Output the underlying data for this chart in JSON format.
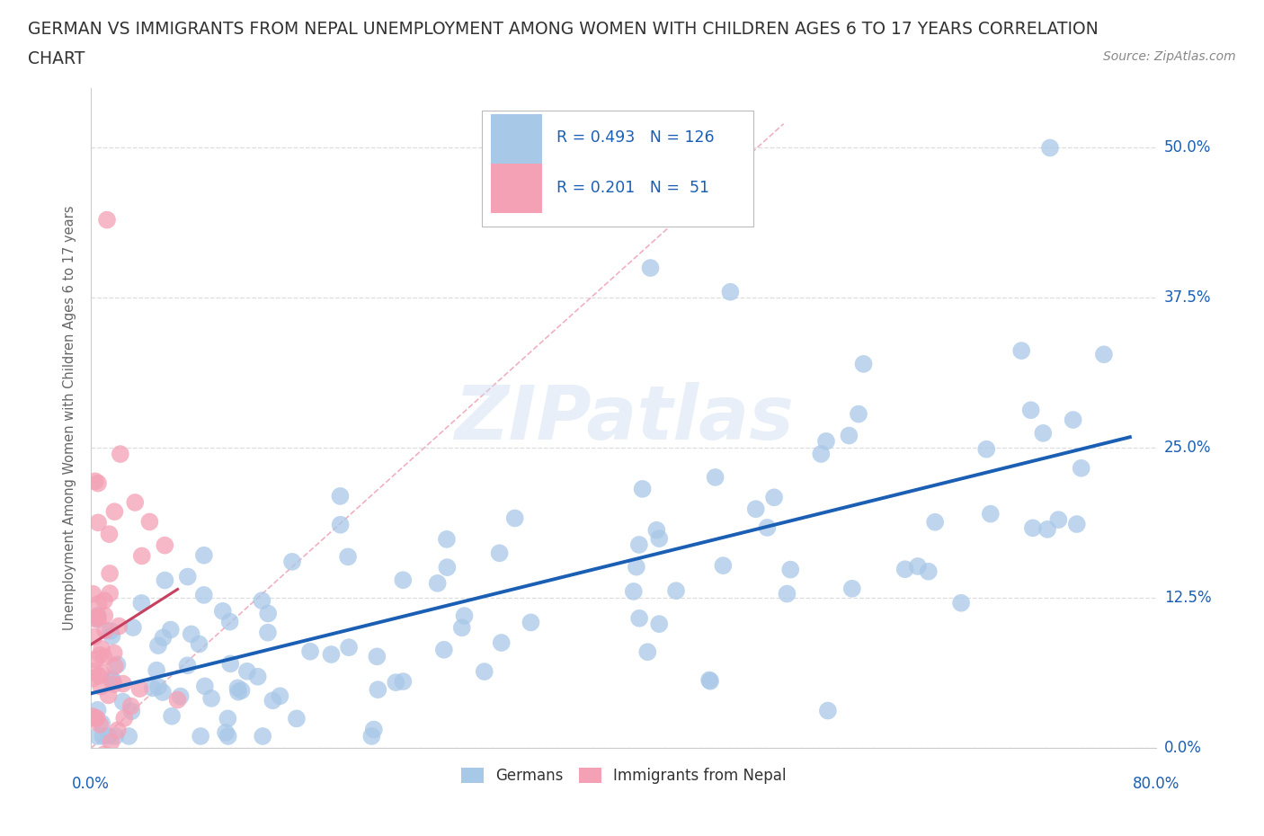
{
  "title_line1": "GERMAN VS IMMIGRANTS FROM NEPAL UNEMPLOYMENT AMONG WOMEN WITH CHILDREN AGES 6 TO 17 YEARS CORRELATION",
  "title_line2": "CHART",
  "source_text": "Source: ZipAtlas.com",
  "ylabel": "Unemployment Among Women with Children Ages 6 to 17 years",
  "xlim": [
    0.0,
    0.8
  ],
  "ylim": [
    0.0,
    0.55
  ],
  "ytick_vals": [
    0.0,
    0.125,
    0.25,
    0.375,
    0.5
  ],
  "ytick_labels": [
    "0.0%",
    "12.5%",
    "25.0%",
    "37.5%",
    "50.0%"
  ],
  "german_R": 0.493,
  "german_N": 126,
  "nepal_R": 0.201,
  "nepal_N": 51,
  "german_color": "#a8c8e8",
  "nepal_color": "#f4a0b5",
  "regression_german_color": "#1a5fb4",
  "regression_nepal_color": "#c84060",
  "diagonal_color": "#e0a0b0",
  "background_color": "#ffffff",
  "grid_color": "#dddddd",
  "axis_label_color": "#666666",
  "tick_label_color": "#1a5fb4",
  "title_color": "#333333",
  "source_color": "#888888"
}
